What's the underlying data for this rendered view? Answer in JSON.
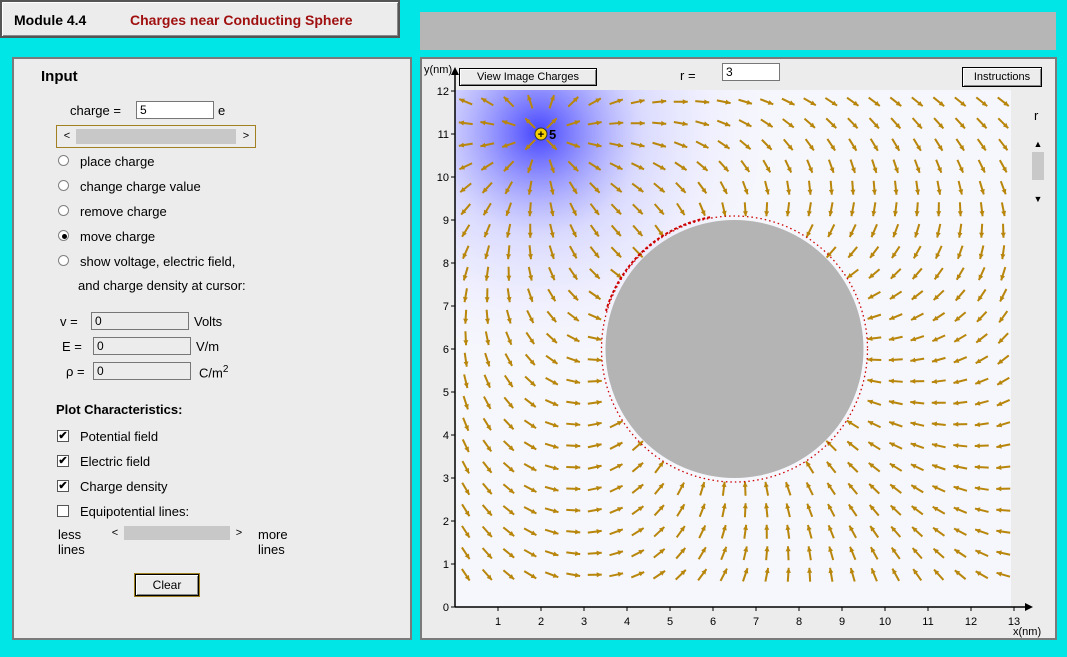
{
  "header": {
    "module_label": "Module 4.4",
    "title": "Charges near Conducting Sphere"
  },
  "input": {
    "heading": "Input",
    "charge_label": "charge =",
    "charge_value": "5",
    "charge_unit": "e",
    "modes": [
      {
        "label": "place charge",
        "selected": false
      },
      {
        "label": "change charge value",
        "selected": false
      },
      {
        "label": "remove charge",
        "selected": false
      },
      {
        "label": "move charge",
        "selected": true
      },
      {
        "label": "show voltage, electric field,",
        "selected": false
      }
    ],
    "modes_line2": "and charge density at cursor:",
    "readouts": {
      "v_label": "v =",
      "v_value": "0",
      "v_unit": "Volts",
      "e_label": "E =",
      "e_value": "0",
      "e_unit": "V/m",
      "rho_label": "ρ =",
      "rho_value": "0",
      "rho_unit": "C/m",
      "rho_sup": "2"
    },
    "plot_heading": "Plot Characteristics:",
    "plot_options": [
      {
        "label": "Potential field",
        "checked": true
      },
      {
        "label": "Electric field",
        "checked": true
      },
      {
        "label": "Charge density",
        "checked": true
      },
      {
        "label": "Equipotential lines:",
        "checked": false
      }
    ],
    "less_lines_1": "less",
    "less_lines_2": "lines",
    "more_lines_1": "more",
    "more_lines_2": "lines",
    "clear_button": "Clear"
  },
  "plot": {
    "view_image_button": "View  Image Charges",
    "r_label": "r =",
    "r_value": "3",
    "instructions_button": "Instructions",
    "r_slider_label": "r",
    "y_axis_label": "y(nm)",
    "x_axis_label": "x(nm)",
    "x_ticks": [
      "1",
      "2",
      "3",
      "4",
      "5",
      "6",
      "7",
      "8",
      "9",
      "10",
      "11",
      "12",
      "13"
    ],
    "y_ticks": [
      "0",
      "1",
      "2",
      "3",
      "4",
      "5",
      "6",
      "7",
      "8",
      "9",
      "10",
      "11",
      "12"
    ],
    "charge_marker_label": "5"
  },
  "physics": {
    "charge_x": 2,
    "charge_y": 11,
    "charge_q": 5,
    "sphere_cx": 6.5,
    "sphere_cy": 6,
    "sphere_r": 3,
    "x_range": [
      0,
      13
    ],
    "y_range": [
      0,
      12.3
    ]
  },
  "colors": {
    "background": "#00e5e5",
    "panel": "#ececec",
    "title_red": "#a01010",
    "arrow": "#b8860b",
    "sphere": "#b4b4b4",
    "potential": "#3a3aff",
    "charge_density": "#cc0000",
    "charge_marker": "#f5d000"
  }
}
